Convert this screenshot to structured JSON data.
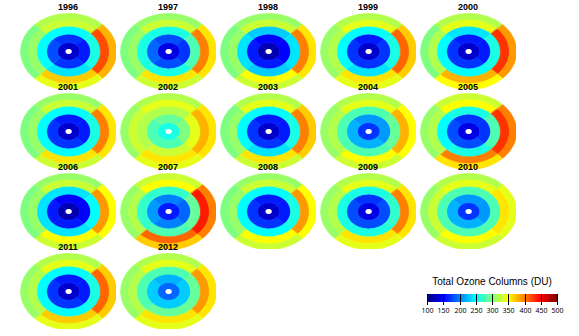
{
  "chart_data": {
    "type": "polar_map_panels",
    "panels": [
      {
        "title": "1996",
        "cells": [
          [
            130,
            130,
            130,
            130
          ],
          [
            170,
            160,
            170,
            180
          ],
          [
            250,
            260,
            240,
            250
          ],
          [
            330,
            420,
            370,
            310
          ],
          [
            320,
            380,
            340,
            300
          ]
        ]
      },
      {
        "title": "1997",
        "cells": [
          [
            140,
            140,
            140,
            140
          ],
          [
            180,
            170,
            180,
            190
          ],
          [
            260,
            280,
            260,
            260
          ],
          [
            330,
            400,
            360,
            310
          ],
          [
            310,
            360,
            330,
            300
          ]
        ]
      },
      {
        "title": "1998",
        "cells": [
          [
            120,
            120,
            120,
            120
          ],
          [
            150,
            150,
            160,
            160
          ],
          [
            230,
            240,
            230,
            240
          ],
          [
            330,
            400,
            350,
            310
          ],
          [
            310,
            360,
            330,
            300
          ]
        ]
      },
      {
        "title": "1999",
        "cells": [
          [
            130,
            130,
            130,
            130
          ],
          [
            160,
            170,
            170,
            170
          ],
          [
            250,
            260,
            240,
            250
          ],
          [
            340,
            410,
            360,
            320
          ],
          [
            320,
            370,
            340,
            310
          ]
        ]
      },
      {
        "title": "2000",
        "cells": [
          [
            130,
            130,
            130,
            130
          ],
          [
            160,
            160,
            170,
            170
          ],
          [
            240,
            260,
            250,
            250
          ],
          [
            340,
            430,
            380,
            320
          ],
          [
            320,
            390,
            350,
            300
          ]
        ]
      },
      {
        "title": "2001",
        "cells": [
          [
            130,
            130,
            130,
            130
          ],
          [
            160,
            160,
            170,
            170
          ],
          [
            250,
            260,
            250,
            250
          ],
          [
            330,
            400,
            360,
            310
          ],
          [
            310,
            360,
            330,
            300
          ]
        ]
      },
      {
        "title": "2002",
        "cells": [
          [
            260,
            260,
            260,
            260
          ],
          [
            290,
            300,
            280,
            280
          ],
          [
            320,
            340,
            330,
            320
          ],
          [
            340,
            380,
            360,
            330
          ],
          [
            320,
            360,
            340,
            310
          ]
        ]
      },
      {
        "title": "2003",
        "cells": [
          [
            130,
            130,
            130,
            130
          ],
          [
            160,
            160,
            170,
            170
          ],
          [
            250,
            260,
            240,
            250
          ],
          [
            340,
            400,
            360,
            310
          ],
          [
            320,
            370,
            330,
            300
          ]
        ]
      },
      {
        "title": "2004",
        "cells": [
          [
            170,
            170,
            170,
            170
          ],
          [
            210,
            210,
            220,
            220
          ],
          [
            280,
            290,
            280,
            280
          ],
          [
            340,
            380,
            350,
            320
          ],
          [
            320,
            350,
            330,
            310
          ]
        ]
      },
      {
        "title": "2005",
        "cells": [
          [
            140,
            140,
            140,
            140
          ],
          [
            170,
            170,
            180,
            180
          ],
          [
            260,
            280,
            260,
            250
          ],
          [
            350,
            430,
            400,
            320
          ],
          [
            330,
            400,
            360,
            310
          ]
        ]
      },
      {
        "title": "2006",
        "cells": [
          [
            120,
            120,
            120,
            120
          ],
          [
            150,
            150,
            160,
            160
          ],
          [
            240,
            250,
            240,
            240
          ],
          [
            330,
            390,
            350,
            310
          ],
          [
            310,
            350,
            330,
            300
          ]
        ]
      },
      {
        "title": "2007",
        "cells": [
          [
            160,
            160,
            160,
            160
          ],
          [
            200,
            190,
            200,
            210
          ],
          [
            270,
            290,
            280,
            270
          ],
          [
            350,
            440,
            410,
            320
          ],
          [
            330,
            400,
            370,
            310
          ]
        ]
      },
      {
        "title": "2008",
        "cells": [
          [
            130,
            130,
            130,
            130
          ],
          [
            160,
            160,
            170,
            170
          ],
          [
            250,
            260,
            250,
            250
          ],
          [
            330,
            390,
            350,
            310
          ],
          [
            310,
            350,
            330,
            300
          ]
        ]
      },
      {
        "title": "2009",
        "cells": [
          [
            140,
            140,
            140,
            140
          ],
          [
            170,
            180,
            180,
            180
          ],
          [
            260,
            270,
            260,
            260
          ],
          [
            340,
            400,
            360,
            320
          ],
          [
            320,
            360,
            340,
            310
          ]
        ]
      },
      {
        "title": "2010",
        "cells": [
          [
            170,
            170,
            170,
            170
          ],
          [
            210,
            210,
            220,
            220
          ],
          [
            280,
            280,
            280,
            280
          ],
          [
            340,
            360,
            350,
            330
          ],
          [
            320,
            340,
            330,
            310
          ]
        ]
      },
      {
        "title": "2011",
        "cells": [
          [
            130,
            130,
            130,
            130
          ],
          [
            160,
            160,
            170,
            170
          ],
          [
            250,
            260,
            250,
            250
          ],
          [
            340,
            410,
            370,
            320
          ],
          [
            320,
            370,
            340,
            310
          ]
        ]
      },
      {
        "title": "2012",
        "cells": [
          [
            190,
            190,
            190,
            190
          ],
          [
            220,
            230,
            230,
            230
          ],
          [
            280,
            290,
            290,
            280
          ],
          [
            340,
            390,
            360,
            320
          ],
          [
            320,
            360,
            340,
            310
          ]
        ]
      }
    ],
    "colorbar": {
      "title": "Total Ozone Columns (DU)",
      "range": [
        100,
        500
      ],
      "ticks": [
        100,
        150,
        200,
        250,
        300,
        350,
        400,
        450,
        500
      ]
    }
  }
}
